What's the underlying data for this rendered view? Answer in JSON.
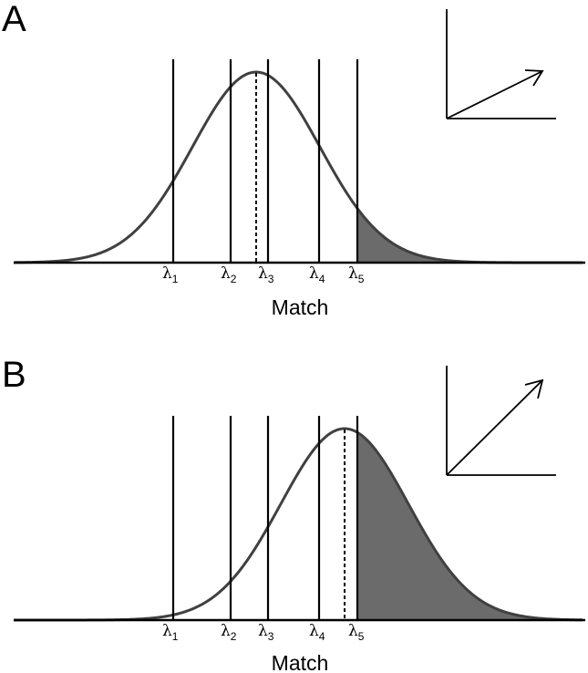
{
  "panels": [
    {
      "label": "A",
      "xlabel": "Match",
      "threshold_labels": [
        {
          "symbol": "λ",
          "sub": "1"
        },
        {
          "symbol": "λ",
          "sub": "2"
        },
        {
          "symbol": "λ",
          "sub": "3"
        },
        {
          "symbol": "λ",
          "sub": "4"
        },
        {
          "symbol": "λ",
          "sub": "5"
        }
      ],
      "distribution_mean_position": 0.5,
      "shaded_region": "right of λ5",
      "inset_arrow_direction": "shallow"
    },
    {
      "label": "B",
      "xlabel": "Match",
      "threshold_labels": [
        {
          "symbol": "λ",
          "sub": "1"
        },
        {
          "symbol": "λ",
          "sub": "2"
        },
        {
          "symbol": "λ",
          "sub": "3"
        },
        {
          "symbol": "λ",
          "sub": "4"
        },
        {
          "symbol": "λ",
          "sub": "5"
        }
      ],
      "distribution_mean_position": 0.85,
      "shaded_region": "right of λ5",
      "inset_arrow_direction": "steep"
    }
  ],
  "colors": {
    "curve": "#404040",
    "shade": "#6b6b6b",
    "lines": "#000000"
  }
}
